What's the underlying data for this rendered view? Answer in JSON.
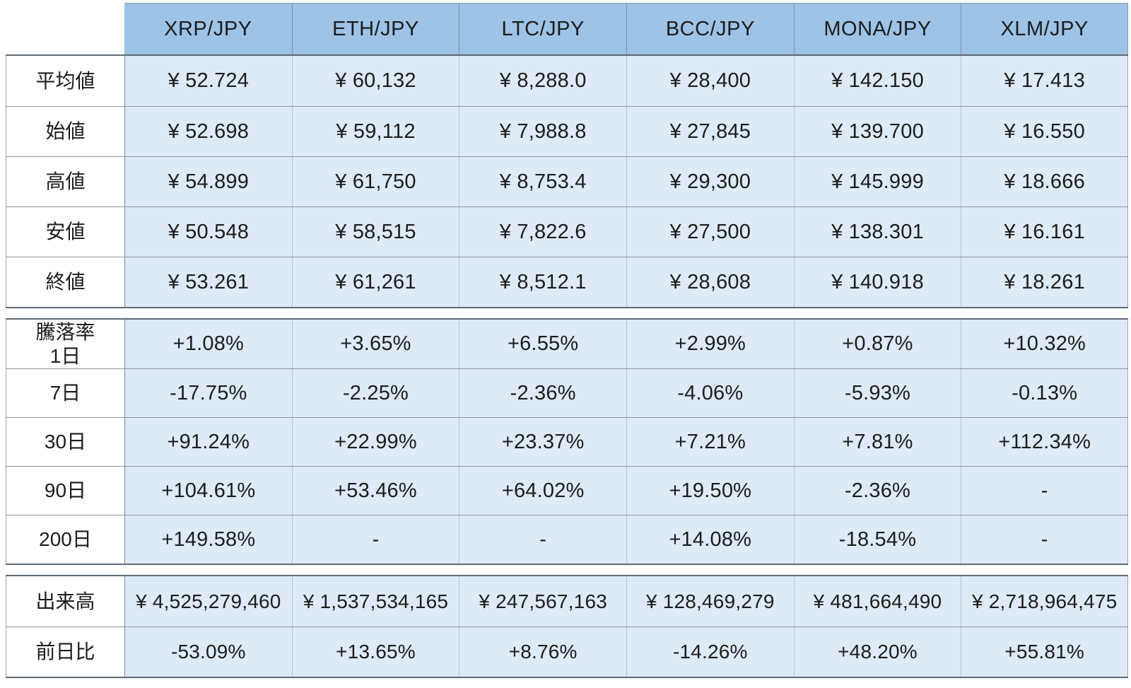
{
  "chart_data": {
    "type": "table",
    "corner_label": "",
    "columns": [
      "XRP/JPY",
      "ETH/JPY",
      "LTC/JPY",
      "BCC/JPY",
      "MONA/JPY",
      "XLM/JPY"
    ],
    "sections": [
      {
        "name": "prices",
        "rows": [
          {
            "label": "平均値",
            "values": [
              "¥ 52.724",
              "¥ 60,132",
              "¥ 8,288.0",
              "¥ 28,400",
              "¥ 142.150",
              "¥ 17.413"
            ]
          },
          {
            "label": "始値",
            "values": [
              "¥ 52.698",
              "¥ 59,112",
              "¥ 7,988.8",
              "¥ 27,845",
              "¥ 139.700",
              "¥ 16.550"
            ]
          },
          {
            "label": "高値",
            "values": [
              "¥ 54.899",
              "¥ 61,750",
              "¥ 8,753.4",
              "¥ 29,300",
              "¥ 145.999",
              "¥ 18.666"
            ]
          },
          {
            "label": "安値",
            "values": [
              "¥ 50.548",
              "¥ 58,515",
              "¥ 7,822.6",
              "¥ 27,500",
              "¥ 138.301",
              "¥ 16.161"
            ]
          },
          {
            "label": "終値",
            "values": [
              "¥ 53.261",
              "¥ 61,261",
              "¥ 8,512.1",
              "¥ 28,608",
              "¥ 140.918",
              "¥ 18.261"
            ]
          }
        ]
      },
      {
        "name": "change-rates",
        "rows": [
          {
            "label": "騰落率\n1日",
            "values": [
              "+1.08%",
              "+3.65%",
              "+6.55%",
              "+2.99%",
              "+0.87%",
              "+10.32%"
            ]
          },
          {
            "label": "7日",
            "values": [
              "-17.75%",
              "-2.25%",
              "-2.36%",
              "-4.06%",
              "-5.93%",
              "-0.13%"
            ]
          },
          {
            "label": "30日",
            "values": [
              "+91.24%",
              "+22.99%",
              "+23.37%",
              "+7.21%",
              "+7.81%",
              "+112.34%"
            ]
          },
          {
            "label": "90日",
            "values": [
              "+104.61%",
              "+53.46%",
              "+64.02%",
              "+19.50%",
              "-2.36%",
              "-"
            ]
          },
          {
            "label": "200日",
            "values": [
              "+149.58%",
              "-",
              "-",
              "+14.08%",
              "-18.54%",
              "-"
            ]
          }
        ]
      },
      {
        "name": "volume",
        "rows": [
          {
            "label": "出来高",
            "values": [
              "¥ 4,525,279,460",
              "¥ 1,537,534,165",
              "¥ 247,567,163",
              "¥ 128,469,279",
              "¥ 481,664,490",
              "¥ 2,718,964,475"
            ]
          },
          {
            "label": "前日比",
            "values": [
              "-53.09%",
              "+13.65%",
              "+8.76%",
              "-14.26%",
              "+48.20%",
              "+55.81%"
            ]
          }
        ]
      }
    ]
  },
  "colors": {
    "header_bg": "#9dc3e6",
    "cell_bg": "#deeaf6",
    "label_bg": "#ffffff",
    "text": "#1c1c1c",
    "section_border": "#5f6a73",
    "row_border": "#8d969e",
    "column_border": "#b6c2cc"
  }
}
